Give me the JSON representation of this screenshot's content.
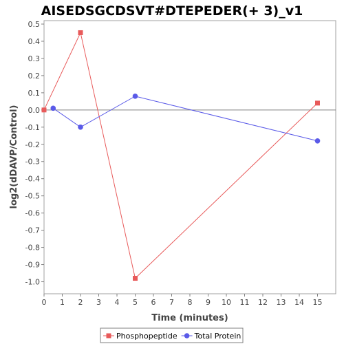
{
  "chart_data": {
    "type": "line",
    "title": "AISEDSGCDSVT#DTEPEDER(+ 3)_v1",
    "xlabel": "Time (minutes)",
    "ylabel": "log2(dDAVP/Control)",
    "xlim": [
      0,
      16
    ],
    "ylim": [
      -1.07,
      0.52
    ],
    "x_ticks": [
      0,
      1,
      2,
      3,
      4,
      5,
      6,
      7,
      8,
      9,
      10,
      11,
      12,
      13,
      14,
      15
    ],
    "x_tick_labels": [
      "0",
      "1",
      "2",
      "3",
      "4",
      "5",
      "6",
      "7",
      "8",
      "9",
      "10",
      "11",
      "12",
      "13",
      "14",
      "15"
    ],
    "y_ticks": [
      0.5,
      0.4,
      0.3,
      0.2,
      0.1,
      0.0,
      -0.1,
      -0.2,
      -0.3,
      -0.4,
      -0.5,
      -0.6,
      -0.7,
      -0.8,
      -0.9,
      -1.0
    ],
    "y_tick_labels": [
      "0.5",
      "0.4",
      "0.3",
      "0.2",
      "0.1",
      "0.0",
      "-0.1",
      "-0.2",
      "-0.3",
      "-0.4",
      "-0.5",
      "-0.6",
      "-0.7",
      "-0.8",
      "-0.9",
      "-1.0"
    ],
    "reference_line_y": 0,
    "grid": false,
    "legend_position": "bottom",
    "series": [
      {
        "name": "Phosphopeptide",
        "color": "#e85a5a",
        "marker": "square",
        "x": [
          0,
          2,
          5,
          15
        ],
        "y": [
          0.0,
          0.45,
          -0.98,
          0.04
        ]
      },
      {
        "name": "Total Protein",
        "color": "#5a5ae8",
        "marker": "circle",
        "x": [
          0.5,
          2,
          5,
          15
        ],
        "y": [
          0.01,
          -0.1,
          0.08,
          -0.18
        ]
      }
    ]
  }
}
